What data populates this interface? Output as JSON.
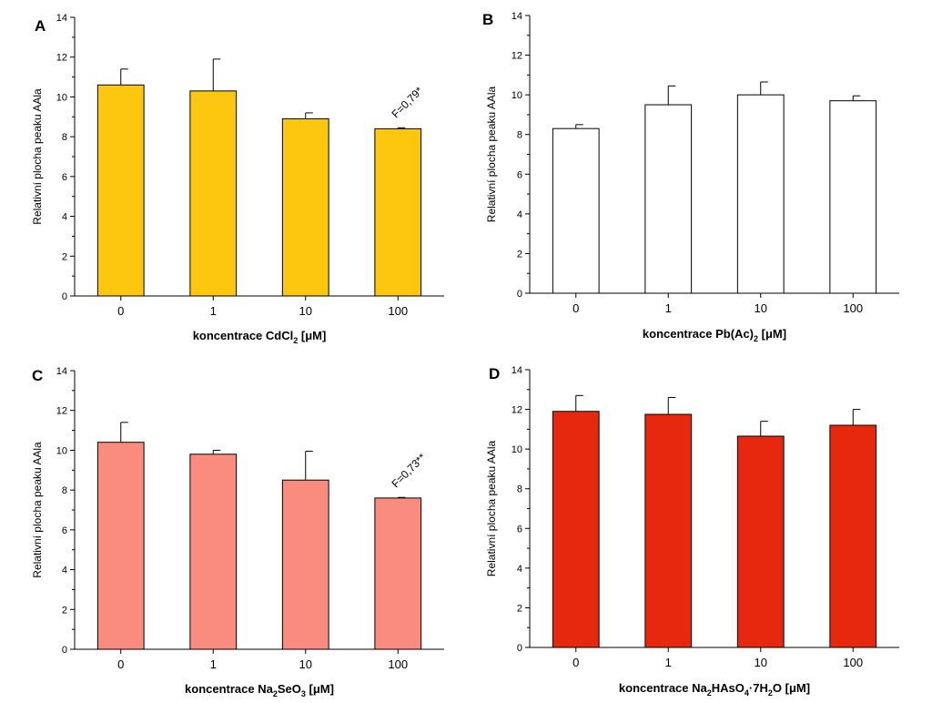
{
  "chart_data": [
    {
      "type": "bar",
      "panel_label": "A",
      "categories": [
        "0",
        "1",
        "10",
        "100"
      ],
      "values": [
        10.6,
        10.3,
        8.9,
        8.4
      ],
      "errors": [
        0.8,
        1.6,
        0.3,
        0.05
      ],
      "ylabel": "Relativní plocha peaku AAla",
      "xlabel": {
        "main": "koncentrace CdCl",
        "sub": "2",
        "tail": " [μM]"
      },
      "ylim": [
        0,
        14
      ],
      "yticks": [
        "0",
        "2",
        "4",
        "6",
        "8",
        "10",
        "12",
        "14"
      ],
      "bar_color": "#FDC70F",
      "annotation": {
        "text": "F=0,79*",
        "category_index": 3
      }
    },
    {
      "type": "bar",
      "panel_label": "B",
      "categories": [
        "0",
        "1",
        "10",
        "100"
      ],
      "values": [
        8.3,
        9.5,
        10.0,
        9.7
      ],
      "errors": [
        0.2,
        0.95,
        0.65,
        0.25
      ],
      "ylabel": "Relativní plocha peaku AAla",
      "xlabel": {
        "main": "koncentrace Pb(Ac)",
        "sub": "2",
        "tail": " [μM]"
      },
      "ylim": [
        0,
        14
      ],
      "yticks": [
        "0",
        "2",
        "4",
        "6",
        "8",
        "10",
        "12",
        "14"
      ],
      "bar_color": "#FFFFFF"
    },
    {
      "type": "bar",
      "panel_label": "C",
      "categories": [
        "0",
        "1",
        "10",
        "100"
      ],
      "values": [
        10.4,
        9.8,
        8.5,
        7.6
      ],
      "errors": [
        1.0,
        0.2,
        1.45,
        0.03
      ],
      "ylabel": "Relativní plocha peaku AAla",
      "xlabel": {
        "main": "koncentrace Na",
        "sub": "2",
        "mid": "SeO",
        "sub2": "3",
        "tail": " [μM]"
      },
      "ylim": [
        0,
        14
      ],
      "yticks": [
        "0",
        "2",
        "4",
        "6",
        "8",
        "10",
        "12",
        "14"
      ],
      "bar_color": "#F98C7E",
      "annotation": {
        "text": "F=0,73**",
        "category_index": 3
      }
    },
    {
      "type": "bar",
      "panel_label": "D",
      "categories": [
        "0",
        "1",
        "10",
        "100"
      ],
      "values": [
        11.9,
        11.75,
        10.65,
        11.2
      ],
      "errors": [
        0.8,
        0.85,
        0.75,
        0.8
      ],
      "ylabel": "Relativní plocha peaku AAla",
      "xlabel": {
        "main": "koncentrace Na",
        "sub": "2",
        "mid": "HAsO",
        "sub2": "4",
        "mid2": "·7H",
        "sub3": "2",
        "mid3": "O",
        "tail": " [μM]"
      },
      "ylim": [
        0,
        14
      ],
      "yticks": [
        "0",
        "2",
        "4",
        "6",
        "8",
        "10",
        "12",
        "14"
      ],
      "bar_color": "#E8280E"
    }
  ]
}
